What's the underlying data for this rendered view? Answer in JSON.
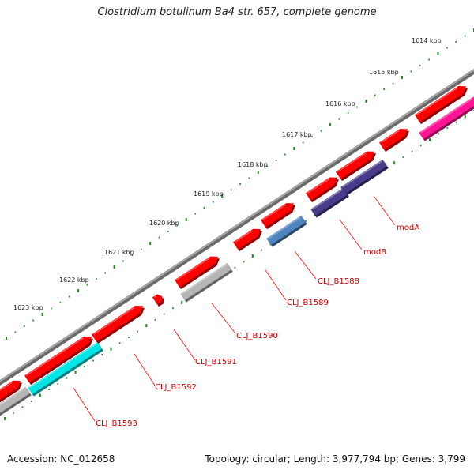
{
  "title": "Clostridium botulinum Ba4 str. 657, complete genome",
  "footer": {
    "accession": "Accession: NC_012658",
    "summary": "Topology: circular; Length: 3,977,794 bp; Genes: 3,799"
  },
  "colors": {
    "backbone": "#7f7f7f",
    "tick_dots": "#1f8a1f",
    "label_text": "#cc0000",
    "label_line": "#ff2a2a",
    "cds": "#ff0000",
    "gene_cyan": "#00e5e5",
    "gene_grey": "#b5b5b5",
    "gene_blue": "#4f86c0",
    "gene_purple": "#4a3c8c",
    "gene_magenta": "#ff1493"
  },
  "scale_labels": [
    {
      "text": "1614 kbp"
    },
    {
      "text": "1615 kbp"
    },
    {
      "text": "1616 kbp"
    },
    {
      "text": "1617 kbp"
    },
    {
      "text": "1618 kbp"
    },
    {
      "text": "1619 kbp"
    },
    {
      "text": "1620 kbp"
    },
    {
      "text": "1621 kbp"
    },
    {
      "text": "1622 kbp"
    },
    {
      "text": "1623 kbp"
    }
  ],
  "gene_labels": [
    {
      "text": "modA"
    },
    {
      "text": "modB"
    },
    {
      "text": "CLJ_B1588"
    },
    {
      "text": "CLJ_B1589"
    },
    {
      "text": "CLJ_B1590"
    },
    {
      "text": "CLJ_B1591"
    },
    {
      "text": "CLJ_B1592"
    },
    {
      "text": "CLJ_B1593"
    }
  ]
}
